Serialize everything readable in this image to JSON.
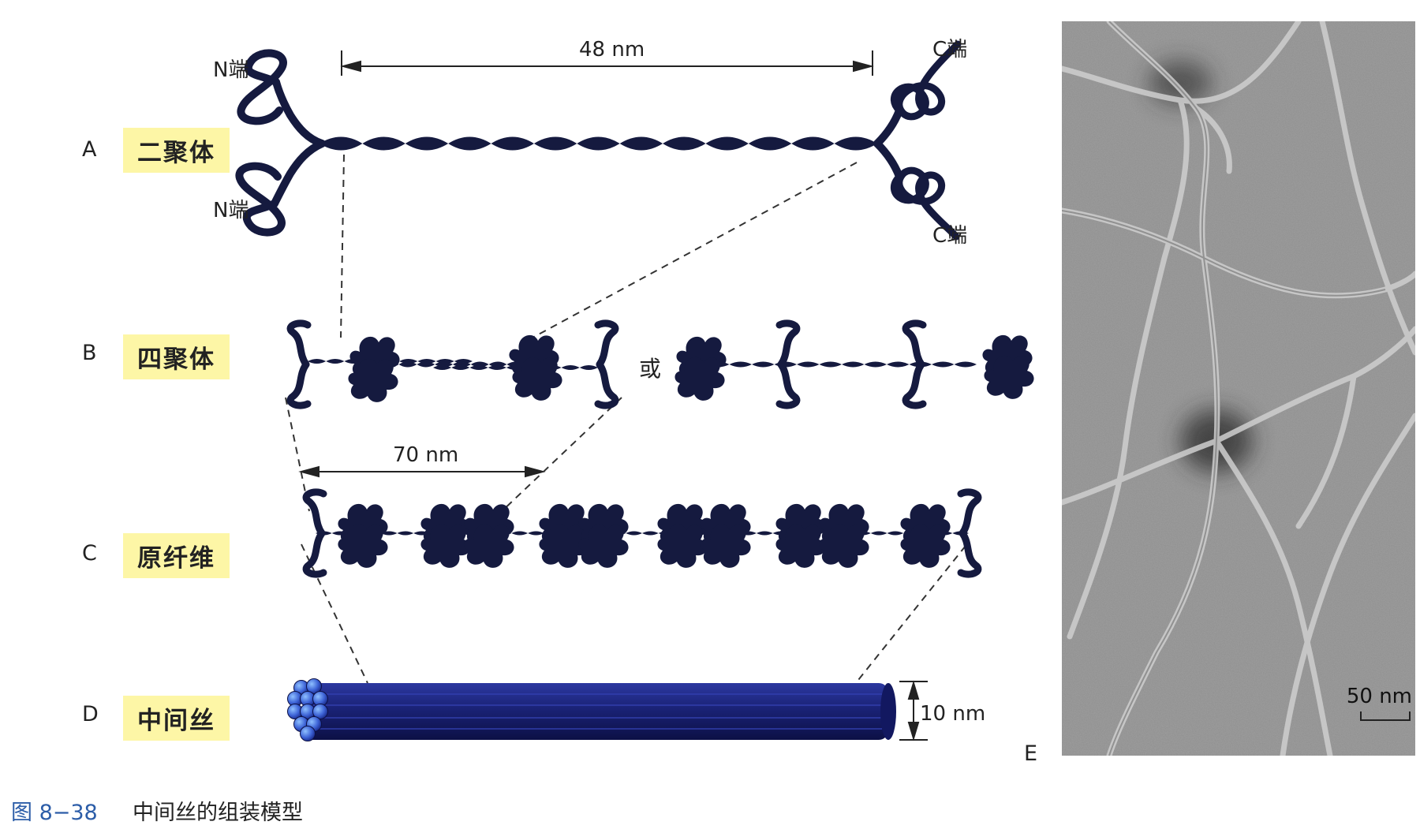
{
  "rows": {
    "a": {
      "letter": "A",
      "tag": "二聚体"
    },
    "b": {
      "letter": "B",
      "tag": "四聚体"
    },
    "c": {
      "letter": "C",
      "tag": "原纤维"
    },
    "d": {
      "letter": "D",
      "tag": "中间丝"
    }
  },
  "dimer": {
    "length_label": "48 nm",
    "n_term_top": "N端",
    "n_term_bottom": "N端",
    "c_term_top": "C端",
    "c_term_bottom": "C端"
  },
  "tetramer": {
    "or_label": "或"
  },
  "protofilament": {
    "length_label": "70 nm"
  },
  "filament": {
    "diameter_label": "10 nm"
  },
  "micrograph": {
    "letter": "E",
    "scale_label": "50 nm"
  },
  "caption": {
    "number": "图 8−38",
    "title": "中间丝的组装模型"
  },
  "colors": {
    "protein": "#151a3f",
    "filament": "#1a2276",
    "filament_highlight": "#3d63d6",
    "tag_bg": "#fdf6a6"
  }
}
